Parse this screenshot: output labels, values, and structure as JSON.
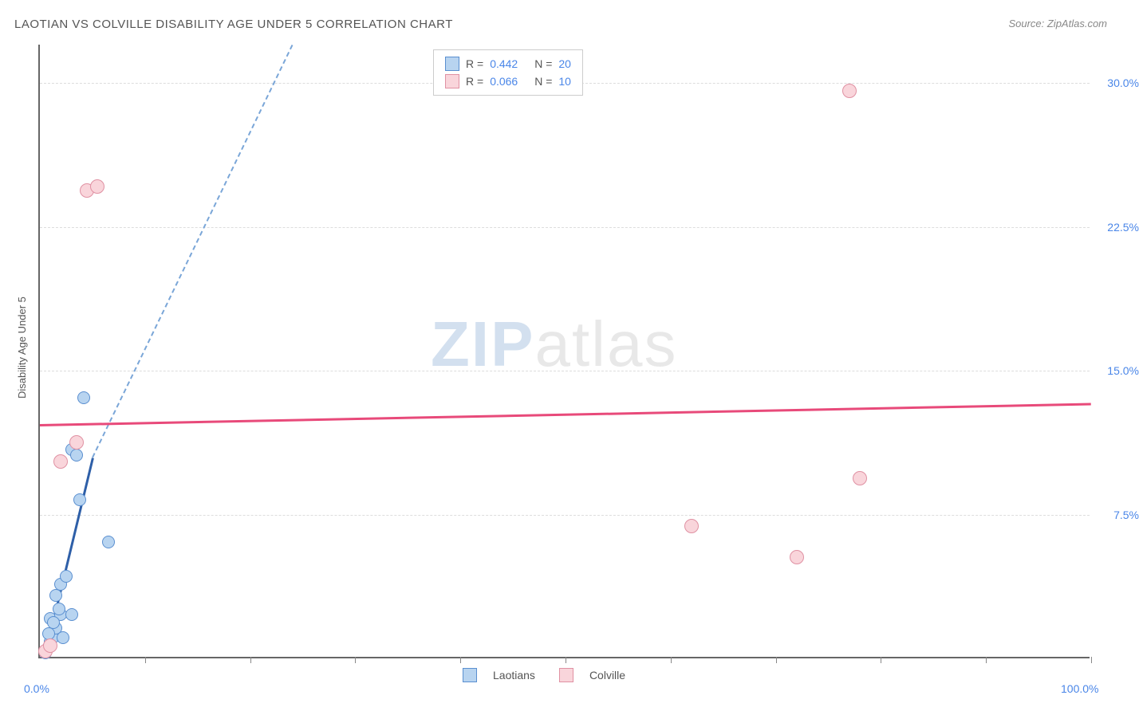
{
  "title": "LAOTIAN VS COLVILLE DISABILITY AGE UNDER 5 CORRELATION CHART",
  "source": "Source: ZipAtlas.com",
  "ylabel": "Disability Age Under 5",
  "watermark_zip": "ZIP",
  "watermark_atlas": "atlas",
  "chart": {
    "type": "scatter",
    "background_color": "#ffffff",
    "grid_color": "#dddddd",
    "axis_color": "#666666",
    "xlim": [
      0,
      100
    ],
    "ylim": [
      0,
      32
    ],
    "x_tick_positions": [
      10,
      20,
      30,
      40,
      50,
      60,
      70,
      80,
      90,
      100
    ],
    "x_tick_labels": {
      "left": "0.0%",
      "right": "100.0%"
    },
    "y_gridlines": [
      7.5,
      15.0,
      22.5,
      30.0
    ],
    "y_tick_labels": [
      "7.5%",
      "15.0%",
      "22.5%",
      "30.0%"
    ],
    "series": [
      {
        "name": "Laotians",
        "fill_color": "#b8d4f0",
        "stroke_color": "#5a8fd0",
        "trend_color": "#2e5fa8",
        "trend_dash_color": "#7aa6d8",
        "R": "0.442",
        "N": "20",
        "marker_size": 16,
        "points": [
          {
            "x": 0.5,
            "y": 0.2
          },
          {
            "x": 0.8,
            "y": 0.5
          },
          {
            "x": 1.0,
            "y": 0.8
          },
          {
            "x": 1.2,
            "y": 1.0
          },
          {
            "x": 1.5,
            "y": 1.5
          },
          {
            "x": 1.0,
            "y": 2.0
          },
          {
            "x": 2.0,
            "y": 2.2
          },
          {
            "x": 1.8,
            "y": 2.5
          },
          {
            "x": 3.0,
            "y": 2.2
          },
          {
            "x": 1.5,
            "y": 3.2
          },
          {
            "x": 2.0,
            "y": 3.8
          },
          {
            "x": 2.5,
            "y": 4.2
          },
          {
            "x": 6.5,
            "y": 6.0
          },
          {
            "x": 3.8,
            "y": 8.2
          },
          {
            "x": 3.0,
            "y": 10.8
          },
          {
            "x": 3.5,
            "y": 10.5
          },
          {
            "x": 4.2,
            "y": 13.5
          },
          {
            "x": 0.8,
            "y": 1.2
          },
          {
            "x": 1.3,
            "y": 1.8
          },
          {
            "x": 2.2,
            "y": 1.0
          }
        ],
        "trend_segments": [
          {
            "x1": 0.5,
            "y1": 0.3,
            "x2": 5.0,
            "y2": 10.5,
            "solid": true
          },
          {
            "x1": 5.0,
            "y1": 10.5,
            "x2": 24.0,
            "y2": 32.0,
            "solid": false
          }
        ]
      },
      {
        "name": "Colville",
        "fill_color": "#f9d5db",
        "stroke_color": "#e091a3",
        "trend_color": "#e84a7a",
        "R": "0.066",
        "N": "10",
        "marker_size": 18,
        "points": [
          {
            "x": 0.5,
            "y": 0.3
          },
          {
            "x": 1.0,
            "y": 0.6
          },
          {
            "x": 2.0,
            "y": 10.2
          },
          {
            "x": 3.5,
            "y": 11.2
          },
          {
            "x": 4.5,
            "y": 24.3
          },
          {
            "x": 5.5,
            "y": 24.5
          },
          {
            "x": 62.0,
            "y": 6.8
          },
          {
            "x": 72.0,
            "y": 5.2
          },
          {
            "x": 78.0,
            "y": 9.3
          },
          {
            "x": 77.0,
            "y": 29.5
          }
        ],
        "trend_segments": [
          {
            "x1": 0,
            "y1": 12.2,
            "x2": 100,
            "y2": 13.3,
            "solid": true
          }
        ]
      }
    ],
    "stats_legend": {
      "r_label": "R =",
      "n_label": "N =",
      "value_color": "#4a86e8",
      "label_color": "#555555"
    },
    "bottom_legend": {
      "items": [
        "Laotians",
        "Colville"
      ]
    }
  }
}
